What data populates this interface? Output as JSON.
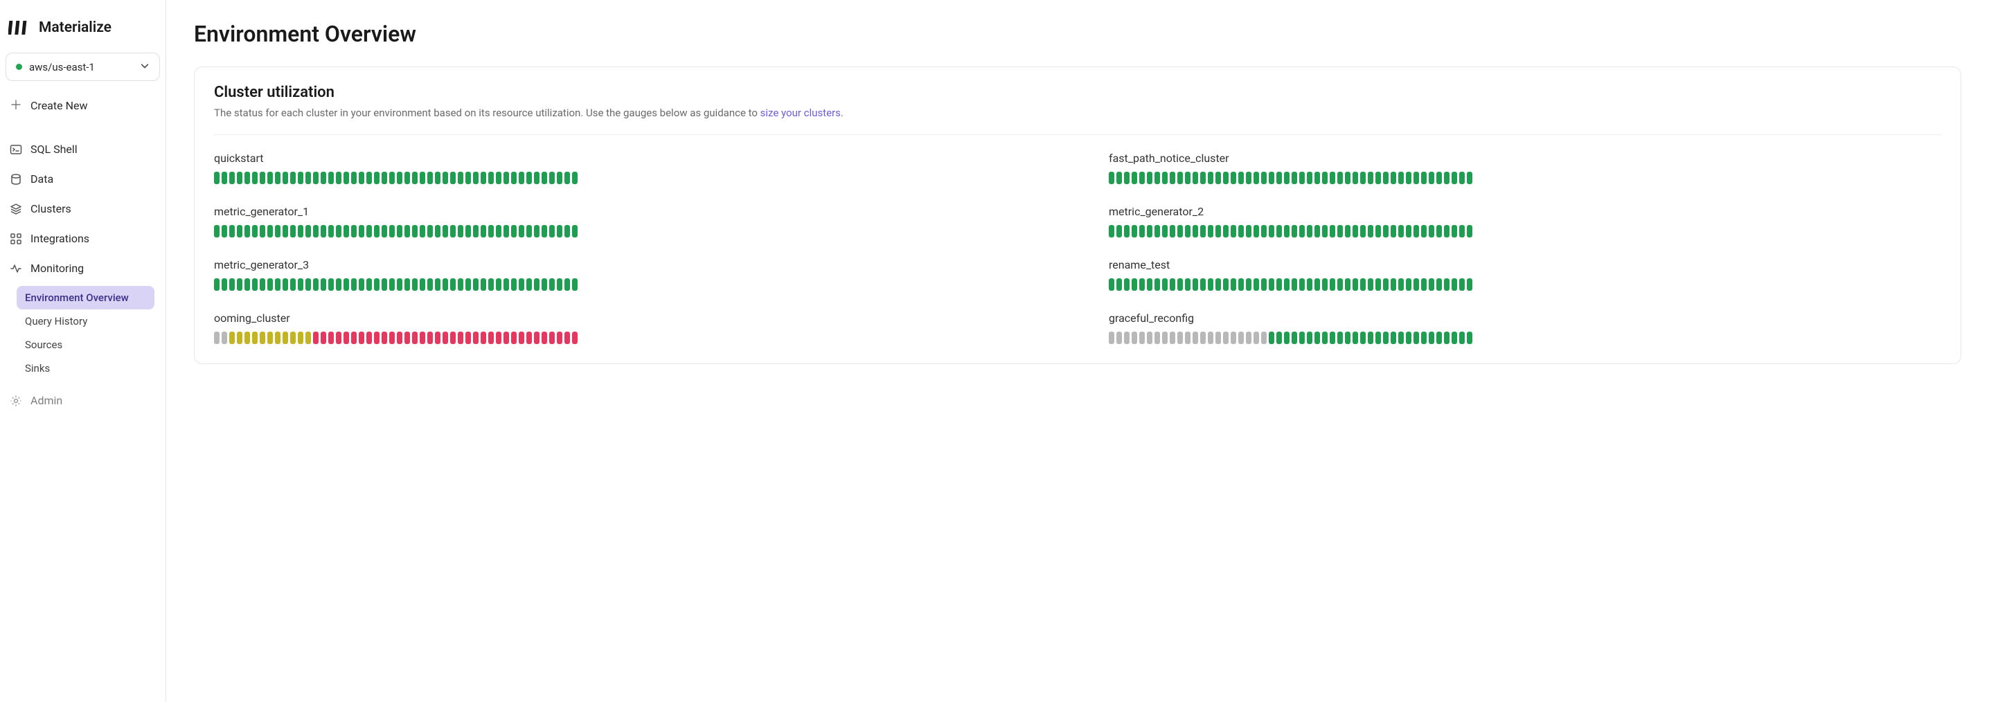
{
  "brand": "Materialize",
  "region": {
    "label": "aws/us-east-1",
    "status": "online"
  },
  "createNewLabel": "Create New",
  "nav": {
    "sqlShell": "SQL Shell",
    "data": "Data",
    "clusters": "Clusters",
    "integrations": "Integrations",
    "monitoring": "Monitoring",
    "admin": "Admin"
  },
  "subnav": {
    "envOverview": "Environment Overview",
    "queryHistory": "Query History",
    "sources": "Sources",
    "sinks": "Sinks"
  },
  "page": {
    "title": "Environment Overview",
    "panelTitle": "Cluster utilization",
    "panelSubtitlePrefix": "The status for each cluster in your environment based on its resource utilization. Use the gauges below as guidance to ",
    "panelSubtitleLink": "size your clusters"
  },
  "colors": {
    "green": "#1f9e52",
    "yellow": "#c3b522",
    "red": "#e6385f",
    "gray": "#b8b8b8"
  },
  "segmentsPerGauge": 48,
  "clusters": [
    {
      "name": "quickstart",
      "segments": [
        "green",
        "green",
        "green",
        "green",
        "green",
        "green",
        "green",
        "green",
        "green",
        "green",
        "green",
        "green",
        "green",
        "green",
        "green",
        "green",
        "green",
        "green",
        "green",
        "green",
        "green",
        "green",
        "green",
        "green",
        "green",
        "green",
        "green",
        "green",
        "green",
        "green",
        "green",
        "green",
        "green",
        "green",
        "green",
        "green",
        "green",
        "green",
        "green",
        "green",
        "green",
        "green",
        "green",
        "green",
        "green",
        "green",
        "green",
        "green"
      ]
    },
    {
      "name": "fast_path_notice_cluster",
      "segments": [
        "green",
        "green",
        "green",
        "green",
        "green",
        "green",
        "green",
        "green",
        "green",
        "green",
        "green",
        "green",
        "green",
        "green",
        "green",
        "green",
        "green",
        "green",
        "green",
        "green",
        "green",
        "green",
        "green",
        "green",
        "green",
        "green",
        "green",
        "green",
        "green",
        "green",
        "green",
        "green",
        "green",
        "green",
        "green",
        "green",
        "green",
        "green",
        "green",
        "green",
        "green",
        "green",
        "green",
        "green",
        "green",
        "green",
        "green",
        "green"
      ]
    },
    {
      "name": "metric_generator_1",
      "segments": [
        "green",
        "green",
        "green",
        "green",
        "green",
        "green",
        "green",
        "green",
        "green",
        "green",
        "green",
        "green",
        "green",
        "green",
        "green",
        "green",
        "green",
        "green",
        "green",
        "green",
        "green",
        "green",
        "green",
        "green",
        "green",
        "green",
        "green",
        "green",
        "green",
        "green",
        "green",
        "green",
        "green",
        "green",
        "green",
        "green",
        "green",
        "green",
        "green",
        "green",
        "green",
        "green",
        "green",
        "green",
        "green",
        "green",
        "green",
        "green"
      ]
    },
    {
      "name": "metric_generator_2",
      "segments": [
        "green",
        "green",
        "green",
        "green",
        "green",
        "green",
        "green",
        "green",
        "green",
        "green",
        "green",
        "green",
        "green",
        "green",
        "green",
        "green",
        "green",
        "green",
        "green",
        "green",
        "green",
        "green",
        "green",
        "green",
        "green",
        "green",
        "green",
        "green",
        "green",
        "green",
        "green",
        "green",
        "green",
        "green",
        "green",
        "green",
        "green",
        "green",
        "green",
        "green",
        "green",
        "green",
        "green",
        "green",
        "green",
        "green",
        "green",
        "green"
      ]
    },
    {
      "name": "metric_generator_3",
      "segments": [
        "green",
        "green",
        "green",
        "green",
        "green",
        "green",
        "green",
        "green",
        "green",
        "green",
        "green",
        "green",
        "green",
        "green",
        "green",
        "green",
        "green",
        "green",
        "green",
        "green",
        "green",
        "green",
        "green",
        "green",
        "green",
        "green",
        "green",
        "green",
        "green",
        "green",
        "green",
        "green",
        "green",
        "green",
        "green",
        "green",
        "green",
        "green",
        "green",
        "green",
        "green",
        "green",
        "green",
        "green",
        "green",
        "green",
        "green",
        "green"
      ]
    },
    {
      "name": "rename_test",
      "segments": [
        "green",
        "green",
        "green",
        "green",
        "green",
        "green",
        "green",
        "green",
        "green",
        "green",
        "green",
        "green",
        "green",
        "green",
        "green",
        "green",
        "green",
        "green",
        "green",
        "green",
        "green",
        "green",
        "green",
        "green",
        "green",
        "green",
        "green",
        "green",
        "green",
        "green",
        "green",
        "green",
        "green",
        "green",
        "green",
        "green",
        "green",
        "green",
        "green",
        "green",
        "green",
        "green",
        "green",
        "green",
        "green",
        "green",
        "green",
        "green"
      ]
    },
    {
      "name": "ooming_cluster",
      "segments": [
        "gray",
        "gray",
        "yellow",
        "yellow",
        "yellow",
        "yellow",
        "yellow",
        "yellow",
        "yellow",
        "yellow",
        "yellow",
        "yellow",
        "yellow",
        "red",
        "red",
        "red",
        "red",
        "red",
        "red",
        "red",
        "red",
        "red",
        "red",
        "red",
        "red",
        "red",
        "red",
        "red",
        "red",
        "red",
        "red",
        "red",
        "red",
        "red",
        "red",
        "red",
        "red",
        "red",
        "red",
        "red",
        "red",
        "red",
        "red",
        "red",
        "red",
        "red",
        "red",
        "red"
      ]
    },
    {
      "name": "graceful_reconfig",
      "segments": [
        "gray",
        "gray",
        "gray",
        "gray",
        "gray",
        "gray",
        "gray",
        "gray",
        "gray",
        "gray",
        "gray",
        "gray",
        "gray",
        "gray",
        "gray",
        "gray",
        "gray",
        "gray",
        "gray",
        "gray",
        "gray",
        "green",
        "green",
        "green",
        "green",
        "green",
        "green",
        "green",
        "green",
        "green",
        "green",
        "green",
        "green",
        "green",
        "green",
        "green",
        "green",
        "green",
        "green",
        "green",
        "green",
        "green",
        "green",
        "green",
        "green",
        "green",
        "green",
        "green"
      ]
    }
  ]
}
